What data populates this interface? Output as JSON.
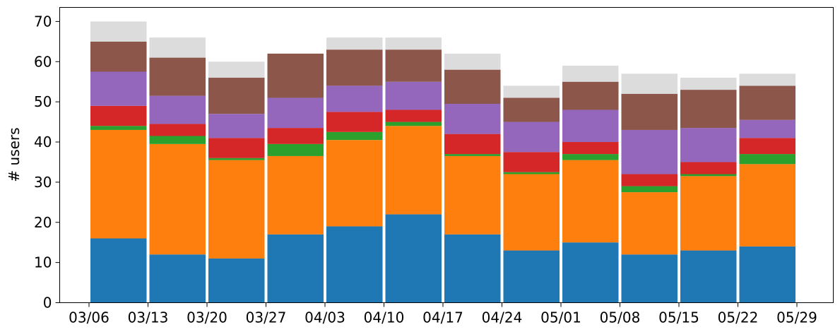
{
  "chart_data": {
    "type": "bar",
    "stacked": true,
    "xlabel": "",
    "ylabel": "# users",
    "ylim": [
      0,
      73.5
    ],
    "yticks": [
      0,
      10,
      20,
      30,
      40,
      50,
      60,
      70
    ],
    "xticks": [
      "03/06",
      "03/13",
      "03/20",
      "03/27",
      "04/03",
      "04/10",
      "04/17",
      "04/24",
      "05/01",
      "05/08",
      "05/15",
      "05/22",
      "05/29"
    ],
    "grid": false,
    "legend": "none",
    "bars": 12,
    "series": [
      {
        "color": "#1f77b4",
        "values": [
          16,
          12,
          11,
          17,
          19,
          22,
          17,
          13,
          15,
          12,
          13,
          14
        ]
      },
      {
        "color": "#ff7f0e",
        "values": [
          27,
          27.5,
          24.5,
          19.5,
          21.5,
          22,
          19.5,
          19,
          20.5,
          15.5,
          18.5,
          20.5
        ]
      },
      {
        "color": "#2ca02c",
        "values": [
          1,
          2,
          0.5,
          3,
          2,
          1,
          0.5,
          0.5,
          1.5,
          1.5,
          0.5,
          2.5
        ]
      },
      {
        "color": "#d62728",
        "values": [
          5,
          3,
          5,
          4,
          5,
          3,
          5,
          5,
          3,
          3,
          3,
          4
        ]
      },
      {
        "color": "#9467bd",
        "values": [
          8.5,
          7,
          6,
          7.5,
          6.5,
          7,
          7.5,
          7.5,
          8,
          11,
          8.5,
          4.5
        ]
      },
      {
        "color": "#8c564b",
        "values": [
          7.5,
          9.5,
          9,
          11,
          9,
          8,
          8.5,
          6,
          7,
          9,
          9.5,
          8.5
        ]
      },
      {
        "color": "#dcdcdc",
        "values": [
          5,
          5,
          4,
          0,
          3,
          3,
          4,
          3,
          4,
          5,
          3,
          3
        ]
      }
    ]
  }
}
